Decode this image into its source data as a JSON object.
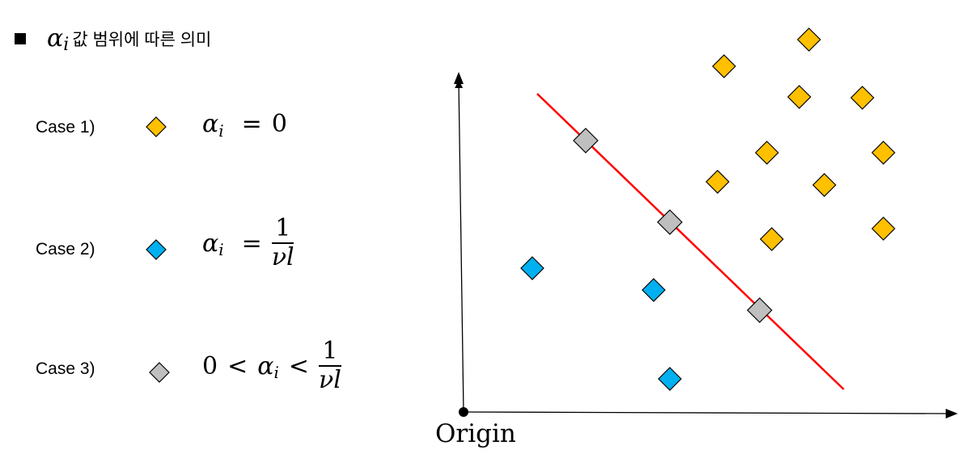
{
  "title": {
    "alpha": "α",
    "subscript": "i",
    "text": "값 범위에 따른 의미"
  },
  "cases": [
    {
      "label": "Case 1)",
      "marker": "gold-diamond-icon",
      "lhs": "α",
      "sub": "i",
      "op": "=",
      "rhs": "0"
    },
    {
      "label": "Case 2)",
      "marker": "blue-diamond-icon",
      "lhs": "α",
      "sub": "i",
      "op": "=",
      "frac_num": "1",
      "frac_den": "νl"
    },
    {
      "label": "Case 3)",
      "marker": "gray-diamond-icon",
      "pre": "0",
      "op1": "<",
      "lhs": "α",
      "sub": "i",
      "op2": "<",
      "frac_num": "1",
      "frac_den": "νl"
    }
  ],
  "origin_label": "Origin",
  "colors": {
    "gold": "#FFC000",
    "blue": "#00B0F0",
    "gray": "#BFBFBF",
    "line": "#FF0000",
    "outline": "#000000"
  }
}
